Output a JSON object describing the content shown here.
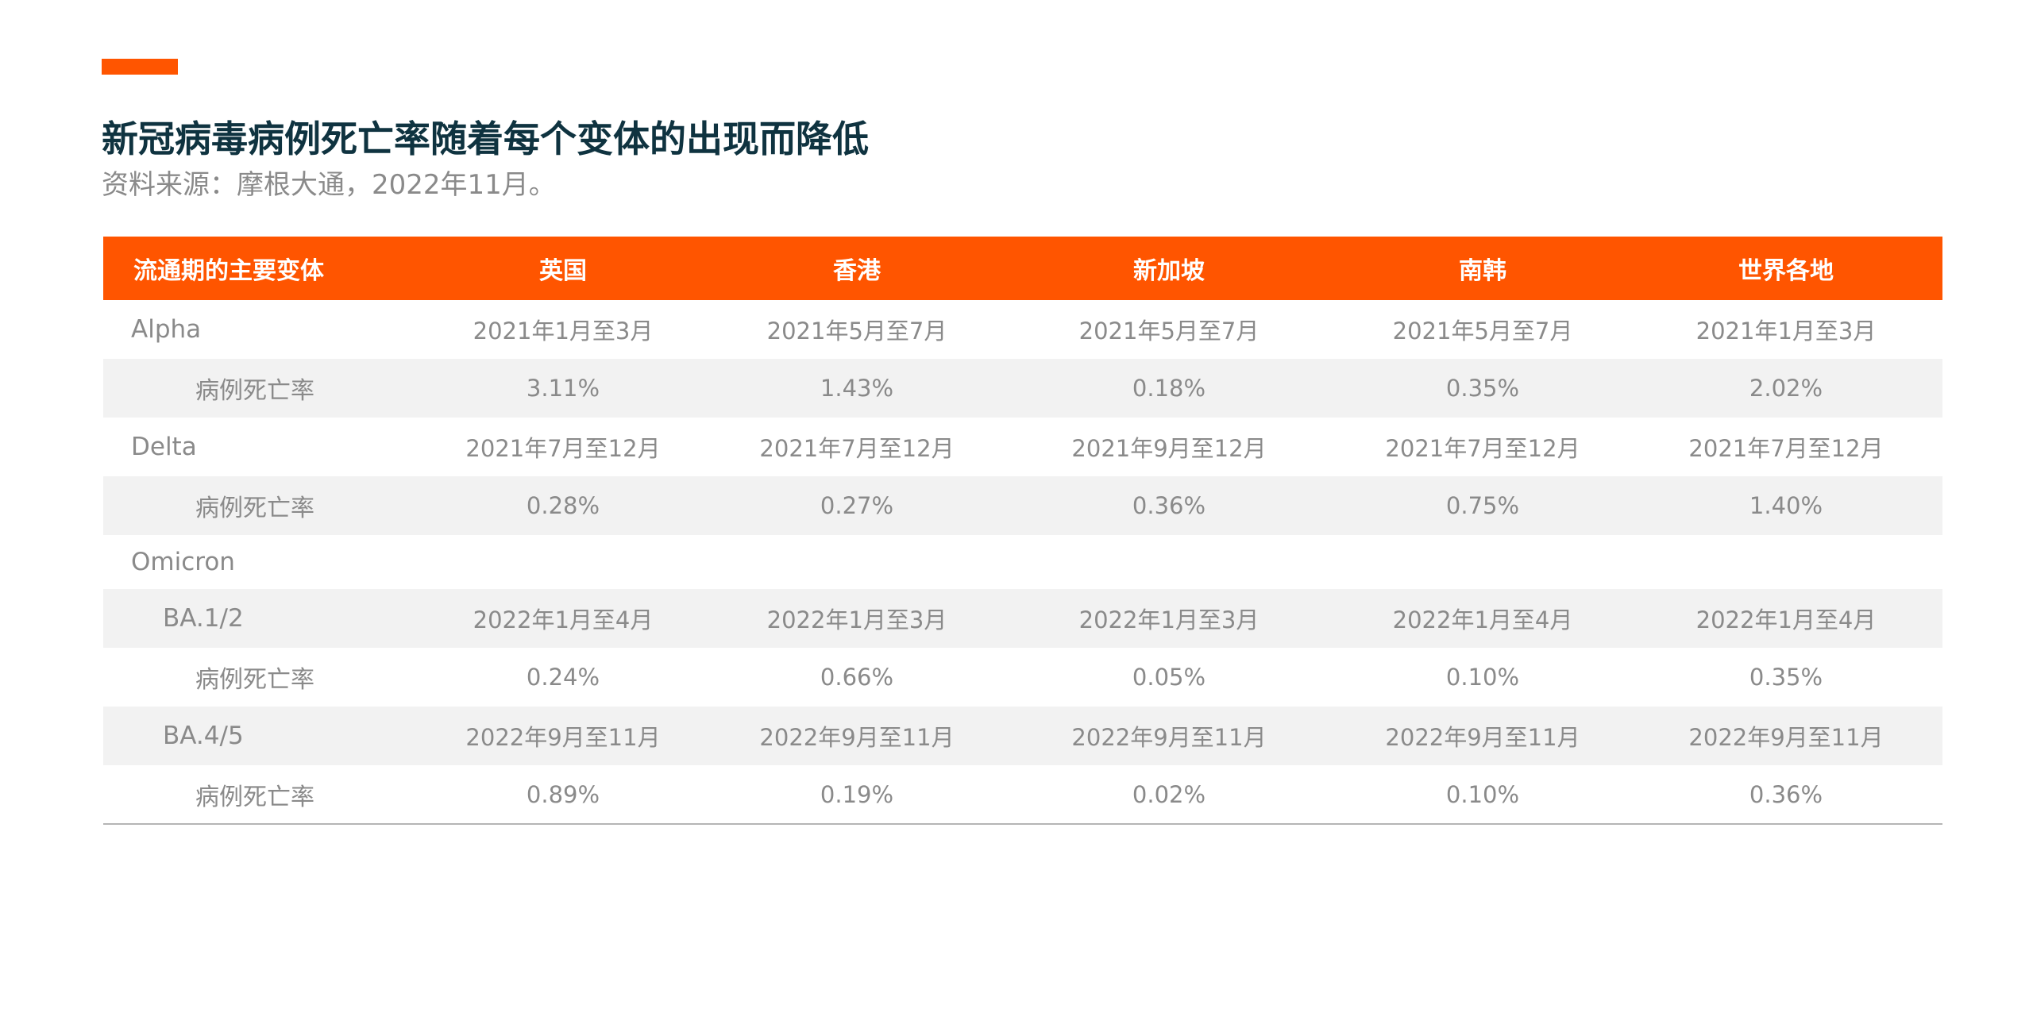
{
  "colors": {
    "accent": "#ff5500",
    "title": "#0f3340",
    "text_muted": "#8a8a8a",
    "row_shade": "#f2f2f2"
  },
  "header": {
    "title": "新冠病毒病例死亡率随着每个变体的出现而降低",
    "subtitle": "资料来源：摩根大通，2022年11月。"
  },
  "table": {
    "columns": [
      "流通期的主要变体",
      "英国",
      "香港",
      "新加坡",
      "南韩",
      "世界各地"
    ],
    "rows": [
      {
        "label": "Alpha",
        "cells": [
          "2021年1月至3月",
          "2021年5月至7月",
          "2021年5月至7月",
          "2021年5月至7月",
          "2021年1月至3月"
        ]
      },
      {
        "label": "病例死亡率",
        "cells": [
          "3.11%",
          "1.43%",
          "0.18%",
          "0.35%",
          "2.02%"
        ]
      },
      {
        "label": "Delta",
        "cells": [
          "2021年7月至12月",
          "2021年7月至12月",
          "2021年9月至12月",
          "2021年7月至12月",
          "2021年7月至12月"
        ]
      },
      {
        "label": "病例死亡率",
        "cells": [
          "0.28%",
          "0.27%",
          "0.36%",
          "0.75%",
          "1.40%"
        ]
      },
      {
        "label": "Omicron",
        "cells": [
          "",
          "",
          "",
          "",
          ""
        ]
      },
      {
        "label": "BA.1/2",
        "cells": [
          "2022年1月至4月",
          "2022年1月至3月",
          "2022年1月至3月",
          "2022年1月至4月",
          "2022年1月至4月"
        ]
      },
      {
        "label": "病例死亡率",
        "cells": [
          "0.24%",
          "0.66%",
          "0.05%",
          "0.10%",
          "0.35%"
        ]
      },
      {
        "label": "BA.4/5",
        "cells": [
          "2022年9月至11月",
          "2022年9月至11月",
          "2022年9月至11月",
          "2022年9月至11月",
          "2022年9月至11月"
        ]
      },
      {
        "label": "病例死亡率",
        "cells": [
          "0.89%",
          "0.19%",
          "0.02%",
          "0.10%",
          "0.36%"
        ]
      }
    ]
  }
}
